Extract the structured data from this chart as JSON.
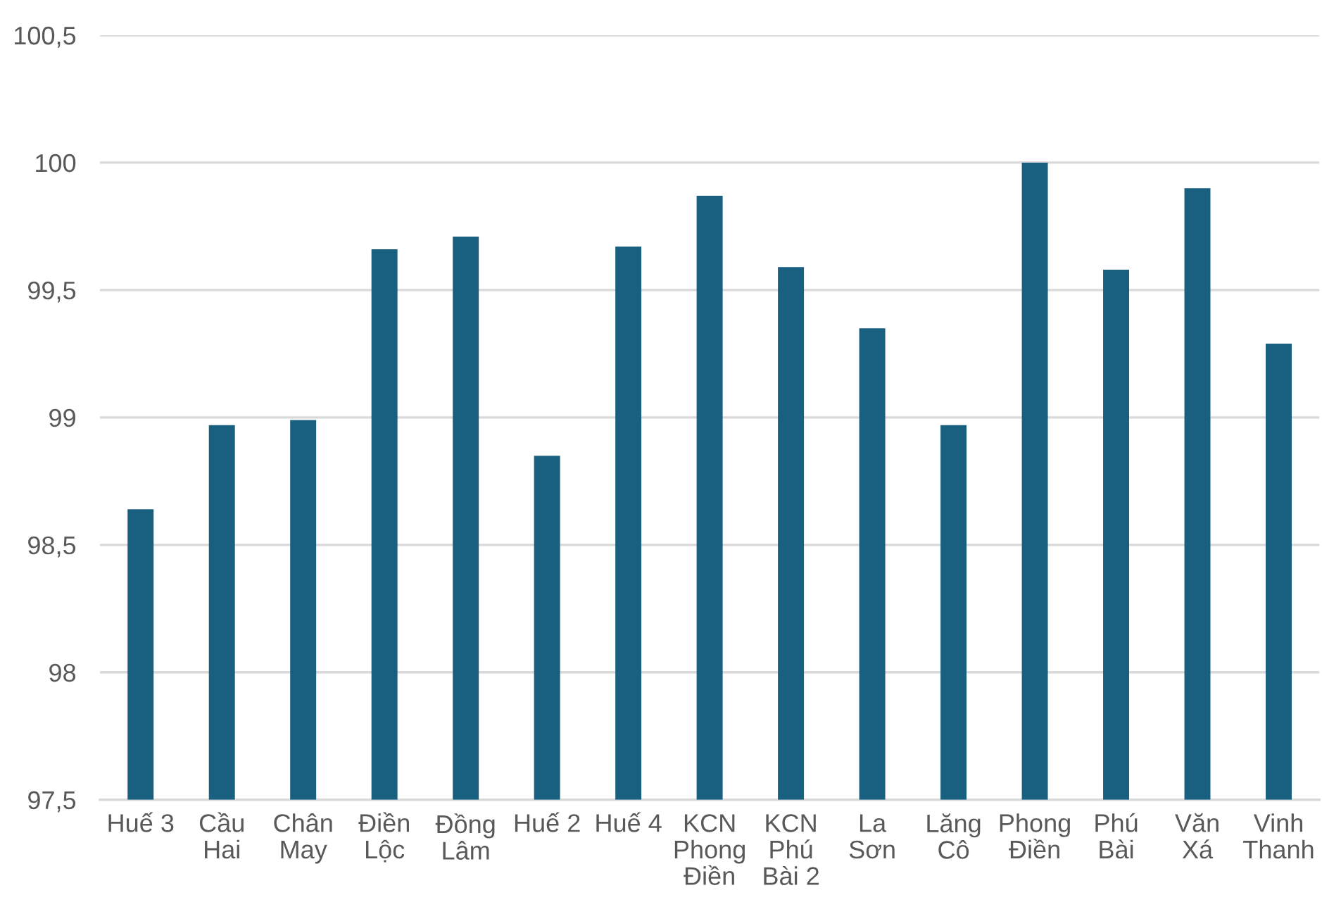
{
  "chart_data": {
    "type": "bar",
    "categories": [
      "Huế 3",
      "Cầu\nHai",
      "Chân\nMay",
      "Điền\nLộc",
      "Đồng\nLâm",
      "Huế 2",
      "Huế 4",
      "KCN\nPhong\nĐiền",
      "KCN\nPhú\nBài 2",
      "La\nSơn",
      "Lăng\nCô",
      "Phong\nĐiền",
      "Phú\nBài",
      "Văn\nXá",
      "Vinh\nThanh"
    ],
    "values": [
      98.64,
      98.97,
      98.99,
      99.66,
      99.71,
      98.85,
      99.67,
      99.87,
      99.59,
      99.35,
      98.97,
      100.0,
      99.58,
      99.9,
      99.29
    ],
    "color": "#185f80",
    "ylim": [
      97.5,
      100.5
    ],
    "yticks": [
      {
        "value": 97.5,
        "label": "97,5"
      },
      98,
      {
        "value": 98.5,
        "label": "98,5"
      },
      99,
      {
        "value": 99.5,
        "label": "99,5"
      },
      100,
      {
        "value": 100.5,
        "label": "100,5"
      }
    ],
    "grid": "y"
  }
}
